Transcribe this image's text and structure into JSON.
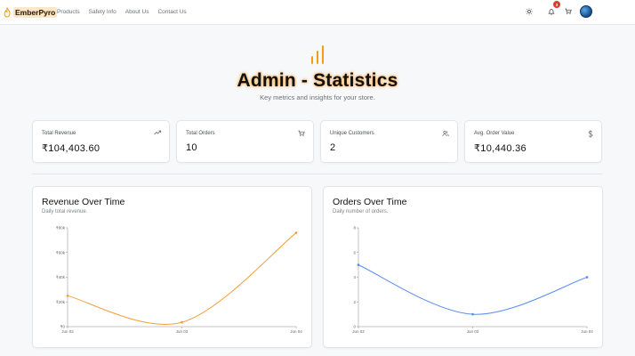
{
  "brand": {
    "name": "EmberPyro"
  },
  "nav": {
    "links": [
      "Products",
      "Safety Info",
      "About Us",
      "Contact Us"
    ],
    "notification_count": "3"
  },
  "hero": {
    "title": "Admin - Statistics",
    "subtitle": "Key metrics and insights for your store."
  },
  "stats": [
    {
      "label": "Total Revenue",
      "value": "₹104,403.60",
      "icon": "trending-up-icon"
    },
    {
      "label": "Total Orders",
      "value": "10",
      "icon": "cart-icon"
    },
    {
      "label": "Unique Customers",
      "value": "2",
      "icon": "users-icon"
    },
    {
      "label": "Avg. Order Value",
      "value": "₹10,440.36",
      "icon": "dollar-icon"
    }
  ],
  "colors": {
    "accent": "#f59e0b",
    "revenue_line": "#f59e3b",
    "orders_line": "#5b8def"
  },
  "chart_data": [
    {
      "type": "line",
      "title": "Revenue Over Time",
      "subtitle": "Daily total revenue.",
      "x": [
        "Jun 02",
        "Jun 03",
        "Jun 04"
      ],
      "values": [
        25000,
        3500,
        76000
      ],
      "yticks": [
        "₹0",
        "₹20k",
        "₹40k",
        "₹60k",
        "₹80k"
      ],
      "ylim": [
        0,
        80000
      ],
      "grid": false
    },
    {
      "type": "line",
      "title": "Orders Over Time",
      "subtitle": "Daily number of orders.",
      "x": [
        "Jun 02",
        "Jun 03",
        "Jun 04"
      ],
      "values": [
        5,
        1,
        4
      ],
      "yticks": [
        "0",
        "2",
        "4",
        "6",
        "8"
      ],
      "ylim": [
        0,
        8
      ],
      "grid": false
    }
  ]
}
